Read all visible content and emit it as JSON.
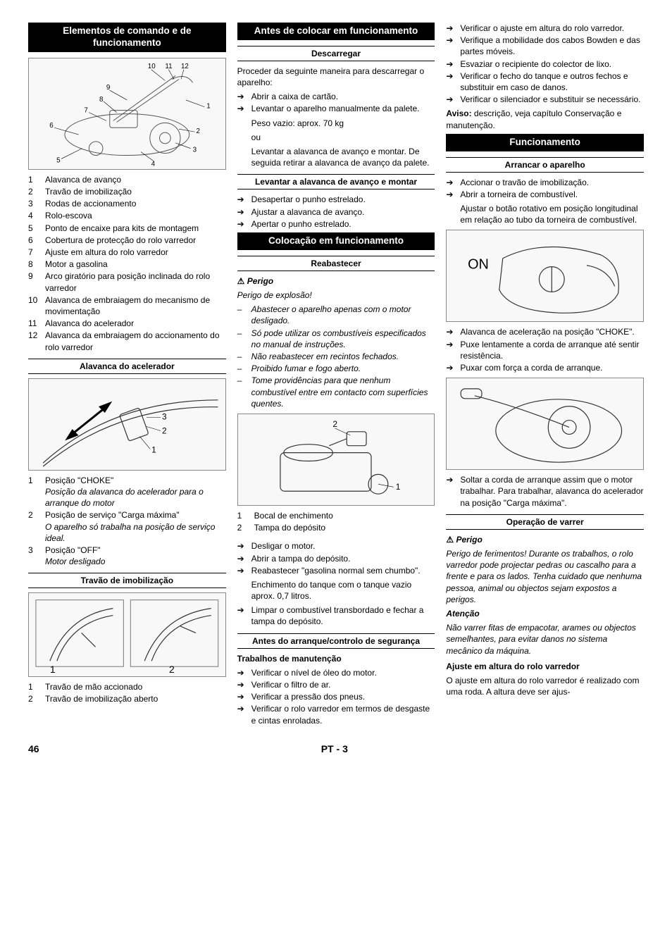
{
  "footer": {
    "pageLeft": "46",
    "langCode": "PT",
    "dash": " - ",
    "pageRight": "3"
  },
  "col1": {
    "h1": "Elementos de comando e de funcionamento",
    "fig1_labels": [
      "10",
      "11",
      "12",
      "9",
      "8",
      "7",
      "6",
      "5",
      "4",
      "1",
      "2",
      "3"
    ],
    "parts": [
      {
        "n": "1",
        "t": "Alavanca de avanço"
      },
      {
        "n": "2",
        "t": "Travão de imobilização"
      },
      {
        "n": "3",
        "t": "Rodas de accionamento"
      },
      {
        "n": "4",
        "t": "Rolo-escova"
      },
      {
        "n": "5",
        "t": "Ponto de encaixe para kits de montagem"
      },
      {
        "n": "6",
        "t": "Cobertura de protecção do rolo varredor"
      },
      {
        "n": "7",
        "t": "Ajuste em altura do rolo varredor"
      },
      {
        "n": "8",
        "t": "Motor a gasolina"
      },
      {
        "n": "9",
        "t": "Arco giratório para posição inclinada do rolo varredor"
      },
      {
        "n": "10",
        "t": "Alavanca de embraiagem do mecanismo de movimentação"
      },
      {
        "n": "11",
        "t": "Alavanca do acelerador"
      },
      {
        "n": "12",
        "t": "Alavanca da embraiagem do accionamento do rolo varredor"
      }
    ],
    "h2": "Alavanca do acelerador",
    "fig2_labels": [
      "3",
      "2",
      "1"
    ],
    "accel": [
      {
        "n": "1",
        "t": "Posição \"CHOKE\"",
        "i": "Posição da alavanca do acelerador para o arranque do motor"
      },
      {
        "n": "2",
        "t": "Posição de serviço \"Carga máxima\"",
        "i": "O aparelho só trabalha na posição de serviço ideal."
      },
      {
        "n": "3",
        "t": "Posição \"OFF\"",
        "i": "Motor desligado"
      }
    ],
    "h3": "Travão de imobilização",
    "fig3_labels": [
      "1",
      "2"
    ],
    "brake": [
      {
        "n": "1",
        "t": "Travão de mão accionado"
      },
      {
        "n": "2",
        "t": "Travão de imobilização aberto"
      }
    ]
  },
  "col2": {
    "h1": "Antes de colocar em funcionamento",
    "h2": "Descarregar",
    "p1": "Proceder da seguinte maneira para descarregar o aparelho:",
    "unload": [
      "Abrir a caixa de cartão.",
      "Levantar o aparelho manualmente da palete."
    ],
    "unload_sub1": "Peso vazio: aprox. 70 kg",
    "unload_sub2": "ou",
    "unload_sub3": "Levantar a alavanca de avanço e montar. De seguida retirar a alavanca de avanço da palete.",
    "h3": "Levantar a alavanca de avanço e montar",
    "mount": [
      "Desapertar o punho estrelado.",
      "Ajustar a alavanca de avanço.",
      "Apertar o punho estrelado."
    ],
    "h4": "Colocação em funcionamento",
    "h5": "Reabastecer",
    "danger_lbl": "Perigo",
    "danger_p": "Perigo de explosão!",
    "danger_items": [
      "Abastecer o aparelho apenas com o motor desligado.",
      "Só pode utilizar os combustíveis especificados no manual de instruções.",
      "Não reabastecer em recintos fechados.",
      "Proibido fumar e fogo aberto.",
      "Tome providências para que nenhum combustível entre em contacto com superfícies quentes."
    ],
    "fig_labels": [
      "2",
      "1"
    ],
    "refuel_parts": [
      {
        "n": "1",
        "t": "Bocal de enchimento"
      },
      {
        "n": "2",
        "t": "Tampa do depósito"
      }
    ],
    "refuel_steps": [
      "Desligar o motor.",
      "Abrir a tampa do depósito.",
      "Reabastecer \"gasolina normal sem chumbo\"."
    ],
    "refuel_sub": "Enchimento do tanque com o tanque vazio aprox. 0,7 litros.",
    "refuel_steps2": [
      "Limpar o combustível transbordado e fechar a tampa do depósito."
    ],
    "h6": "Antes do arranque/controlo de segurança",
    "h7": "Trabalhos de manutenção",
    "maint": [
      "Verificar o nível de óleo do motor.",
      "Verificar o filtro de ar.",
      "Verificar a pressão dos pneus.",
      "Verificar o rolo varredor em termos de desgaste e cintas enroladas."
    ]
  },
  "col3": {
    "maint2": [
      "Verificar o ajuste em altura do rolo varredor.",
      "Verifique a mobilidade dos cabos Bowden e das partes móveis.",
      "Esvaziar o recipiente do colector de lixo.",
      "Verificar o fecho do tanque e outros fechos e substituir em caso de danos.",
      "Verificar o silenciador e substituir se necessário."
    ],
    "aviso_lbl": "Aviso:",
    "aviso_txt": " descrição, veja capítulo Conservação e manutenção.",
    "h1": "Funcionamento",
    "h2": "Arrancar o aparelho",
    "start": [
      "Accionar o travão de imobilização.",
      "Abrir a torneira de combustível."
    ],
    "start_sub": "Ajustar o botão rotativo em posição longitudinal em relação ao tubo da torneira de combustível.",
    "fig1_label": "ON",
    "start2": [
      "Alavanca de aceleração na posição \"CHOKE\".",
      "Puxe lentamente a corda de arranque até sentir resistência.",
      "Puxar com força a corda de arranque."
    ],
    "start3": [
      "Soltar a corda de arranque assim que o motor trabalhar. Para trabalhar, alavanca do acelerador na posição \"Carga máxima\"."
    ],
    "h3": "Operação de varrer",
    "danger_lbl": "Perigo",
    "danger_p": "Perigo de ferimentos! Durante os trabalhos, o rolo varredor pode projectar pedras ou cascalho para a frente e para os lados. Tenha cuidado que nenhuma pessoa, animal ou objectos sejam expostos a perigos.",
    "att_lbl": "Atenção",
    "att_p": "Não varrer fitas de empacotar, arames ou objectos semelhantes, para evitar danos no sistema mecânico da máquina.",
    "h4": "Ajuste em altura do rolo varredor",
    "adj_p": "O ajuste em altura do rolo varredor é realizado com uma roda. A altura deve ser ajus-"
  }
}
